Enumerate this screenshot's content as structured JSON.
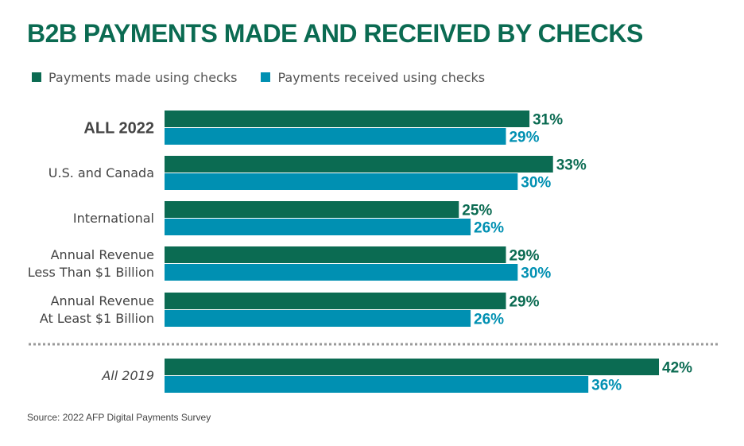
{
  "colors": {
    "made": "#0b6b52",
    "received": "#0090b2",
    "title": "#0b6b52",
    "category_text": "#444444",
    "divider": "#999999"
  },
  "title": "B2B PAYMENTS MADE AND RECEIVED BY CHECKS",
  "source": "Source: 2022 AFP Digital Payments Survey",
  "chart_data": {
    "type": "bar",
    "orientation": "horizontal",
    "title": "B2B PAYMENTS MADE AND RECEIVED BY CHECKS",
    "legend_position": "top-left",
    "grid": false,
    "xlim": [
      0,
      45
    ],
    "value_suffix": "%",
    "categories": [
      {
        "lines": [
          "ALL 2022"
        ],
        "style": "bold"
      },
      {
        "lines": [
          "U.S. and Canada"
        ],
        "style": "normal"
      },
      {
        "lines": [
          "International"
        ],
        "style": "normal"
      },
      {
        "lines": [
          "Annual Revenue",
          "Less Than $1 Billion"
        ],
        "style": "normal"
      },
      {
        "lines": [
          "Annual Revenue",
          "At Least $1 Billion"
        ],
        "style": "normal"
      },
      {
        "lines": [
          "All 2019"
        ],
        "style": "italic"
      }
    ],
    "divider_before_index": 5,
    "series": [
      {
        "name": "Payments made using checks",
        "values": [
          31,
          33,
          25,
          29,
          29,
          42
        ]
      },
      {
        "name": "Payments received using checks",
        "values": [
          29,
          30,
          26,
          30,
          26,
          36
        ]
      }
    ]
  }
}
